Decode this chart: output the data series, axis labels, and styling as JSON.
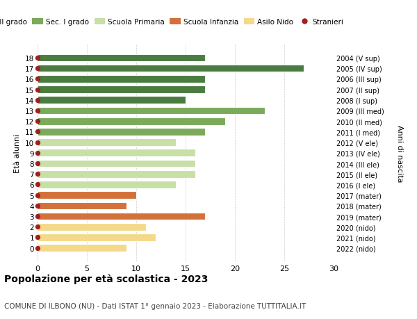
{
  "ages": [
    18,
    17,
    16,
    15,
    14,
    13,
    12,
    11,
    10,
    9,
    8,
    7,
    6,
    5,
    4,
    3,
    2,
    1,
    0
  ],
  "values": [
    17,
    27,
    17,
    17,
    15,
    23,
    19,
    17,
    14,
    16,
    16,
    16,
    14,
    10,
    9,
    17,
    11,
    12,
    9
  ],
  "right_labels": [
    "2004 (V sup)",
    "2005 (IV sup)",
    "2006 (III sup)",
    "2007 (II sup)",
    "2008 (I sup)",
    "2009 (III med)",
    "2010 (II med)",
    "2011 (I med)",
    "2012 (V ele)",
    "2013 (IV ele)",
    "2014 (III ele)",
    "2015 (II ele)",
    "2016 (I ele)",
    "2017 (mater)",
    "2018 (mater)",
    "2019 (mater)",
    "2020 (nido)",
    "2021 (nido)",
    "2022 (nido)"
  ],
  "color_map": {
    "18": "#4a7c3f",
    "17": "#4a7c3f",
    "16": "#4a7c3f",
    "15": "#4a7c3f",
    "14": "#4a7c3f",
    "13": "#7aaa5a",
    "12": "#7aaa5a",
    "11": "#7aaa5a",
    "10": "#c8dfa8",
    "9": "#c8dfa8",
    "8": "#c8dfa8",
    "7": "#c8dfa8",
    "6": "#c8dfa8",
    "5": "#d4713a",
    "4": "#d4713a",
    "3": "#d4713a",
    "2": "#f5d98a",
    "1": "#f5d98a",
    "0": "#f5d98a"
  },
  "dot_color": "#a02020",
  "dot_size": 18,
  "ylabel": "Età alunni",
  "right_ylabel": "Anni di nascita",
  "title": "Popolazione per età scolastica - 2023",
  "subtitle": "COMUNE DI ILBONO (NU) - Dati ISTAT 1° gennaio 2023 - Elaborazione TUTTITALIA.IT",
  "xlim": [
    0,
    30
  ],
  "xticks": [
    0,
    5,
    10,
    15,
    20,
    25,
    30
  ],
  "background_color": "#ffffff",
  "grid_color": "#cccccc",
  "legend_colors": [
    "#4a7c3f",
    "#7aaa5a",
    "#c8dfa8",
    "#d4713a",
    "#f5d98a",
    "#a02020"
  ],
  "legend_labels": [
    "Sec. II grado",
    "Sec. I grado",
    "Scuola Primaria",
    "Scuola Infanzia",
    "Asilo Nido",
    "Stranieri"
  ]
}
